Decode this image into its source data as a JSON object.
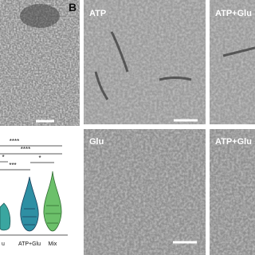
{
  "panel_label": "B",
  "micrographs": [
    {
      "label": "ATP"
    },
    {
      "label": "ATP+Glu"
    },
    {
      "label": "Glu"
    },
    {
      "label": "ATP+Glu"
    }
  ],
  "plot": {
    "significance": [
      "****",
      "****",
      "*",
      "***",
      "*"
    ],
    "x_labels": [
      "u",
      "ATP+Glu",
      "Mix"
    ]
  }
}
